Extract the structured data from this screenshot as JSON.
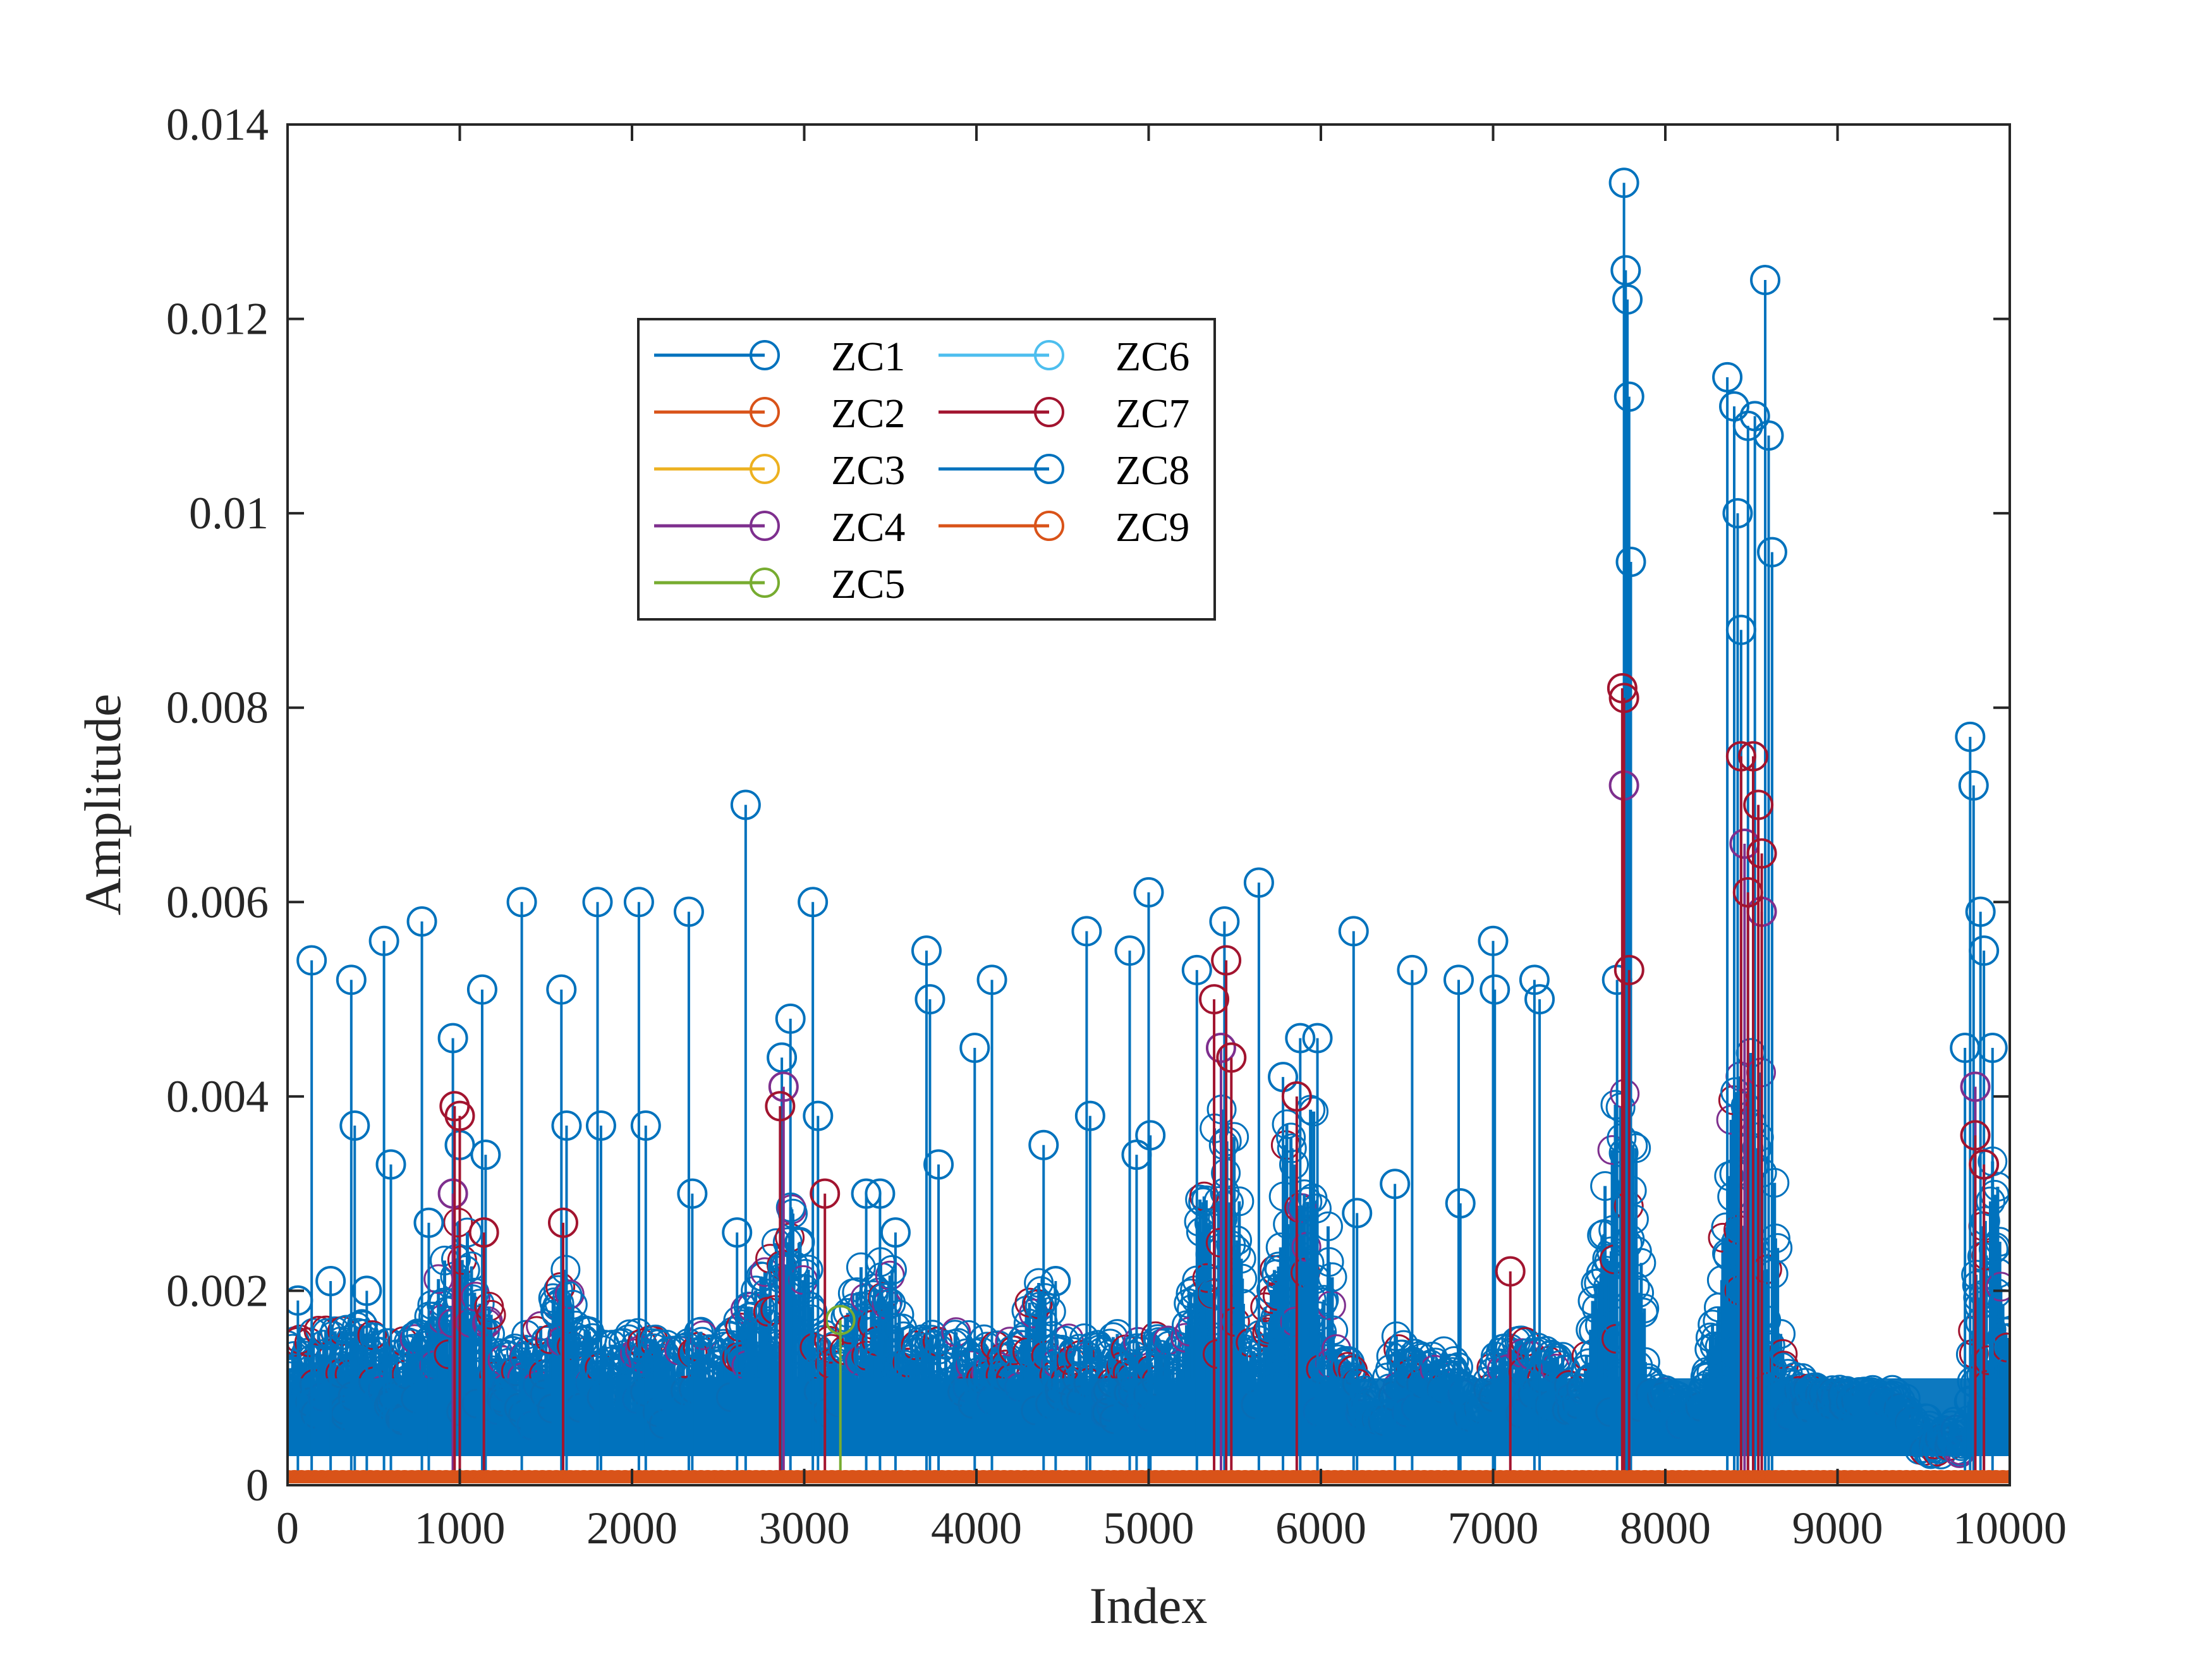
{
  "chart_data": {
    "type": "scatter",
    "plot_style": "stem",
    "title": "",
    "xlabel": "Index",
    "ylabel": "Amplitude",
    "xlim": [
      0,
      10000
    ],
    "ylim": [
      0,
      0.014
    ],
    "xticks": [
      0,
      1000,
      2000,
      3000,
      4000,
      5000,
      6000,
      7000,
      8000,
      9000,
      10000
    ],
    "xtick_labels": [
      "0",
      "1000",
      "2000",
      "3000",
      "4000",
      "5000",
      "6000",
      "7000",
      "8000",
      "9000",
      "10000"
    ],
    "yticks": [
      0,
      0.002,
      0.004,
      0.006,
      0.008,
      0.01,
      0.012,
      0.014
    ],
    "ytick_labels": [
      "0",
      "0.002",
      "0.004",
      "0.006",
      "0.008",
      "0.01",
      "0.012",
      "0.014"
    ],
    "grid": false,
    "legend_position": "upper-left-inside",
    "legend_columns": 2,
    "series": [
      {
        "name": "ZC1",
        "color": "#0072BD",
        "x": [
          60,
          140,
          250,
          370,
          390,
          460,
          560,
          600,
          780,
          820,
          960,
          1000,
          1130,
          1150,
          1360,
          1590,
          1620,
          1800,
          1820,
          2040,
          2080,
          2330,
          2350,
          2610,
          2660,
          2870,
          2920,
          3050,
          3080,
          3360,
          3440,
          3530,
          3710,
          3730,
          3780,
          3990,
          4090,
          4390,
          4460,
          4640,
          4660,
          4890,
          4930,
          5000,
          5010,
          5280,
          5440,
          5640,
          5780,
          5880,
          5980,
          6190,
          6210,
          6430,
          6530,
          6800,
          6810,
          7000,
          7010,
          7240,
          7270,
          7720,
          7760,
          7770,
          7780,
          7790,
          7800,
          8360,
          8400,
          8420,
          8440,
          8480,
          8520,
          8580,
          8600,
          8620,
          9740,
          9770,
          9790,
          9830,
          9850,
          9900
        ],
        "y": [
          0.0019,
          0.0054,
          0.0021,
          0.0052,
          0.0037,
          0.002,
          0.0056,
          0.0033,
          0.0058,
          0.0027,
          0.0046,
          0.0035,
          0.0051,
          0.0034,
          0.006,
          0.0051,
          0.0037,
          0.006,
          0.0037,
          0.006,
          0.0037,
          0.0059,
          0.003,
          0.0026,
          0.007,
          0.0044,
          0.0048,
          0.006,
          0.0038,
          0.003,
          0.003,
          0.0026,
          0.0055,
          0.005,
          0.0033,
          0.0045,
          0.0052,
          0.0035,
          0.0021,
          0.0057,
          0.0038,
          0.0055,
          0.0034,
          0.0061,
          0.0036,
          0.0053,
          0.0058,
          0.0062,
          0.0042,
          0.0046,
          0.0046,
          0.0057,
          0.0028,
          0.0031,
          0.0053,
          0.0052,
          0.0029,
          0.0056,
          0.0051,
          0.0052,
          0.005,
          0.0052,
          0.0134,
          0.0125,
          0.0122,
          0.0112,
          0.0095,
          0.0114,
          0.0111,
          0.01,
          0.0088,
          0.0109,
          0.011,
          0.0124,
          0.0108,
          0.0096,
          0.0045,
          0.0077,
          0.0072,
          0.0059,
          0.0055,
          0.0045
        ]
      },
      {
        "name": "ZC2",
        "color": "#D95319",
        "x": [],
        "y": []
      },
      {
        "name": "ZC3",
        "color": "#EDB120",
        "x": [],
        "y": []
      },
      {
        "name": "ZC4",
        "color": "#7E2F8E",
        "x": [
          960,
          2880,
          5420,
          7760,
          8460,
          8560,
          9800
        ],
        "y": [
          0.003,
          0.0041,
          0.0045,
          0.0072,
          0.0066,
          0.0059,
          0.0041
        ]
      },
      {
        "name": "ZC5",
        "color": "#77AC30",
        "x": [
          3210
        ],
        "y": [
          0.0017
        ]
      },
      {
        "name": "ZC6",
        "color": "#4DBEEE",
        "x": [],
        "y": []
      },
      {
        "name": "ZC7",
        "color": "#A2142F",
        "x": [
          970,
          1000,
          1140,
          1600,
          2860,
          3120,
          5380,
          5450,
          5480,
          5860,
          7100,
          7750,
          7760,
          7790,
          8440,
          8480,
          8510,
          8540,
          8560,
          9800,
          9850
        ],
        "y": [
          0.0039,
          0.0038,
          0.0026,
          0.0027,
          0.0039,
          0.003,
          0.005,
          0.0054,
          0.0044,
          0.004,
          0.0022,
          0.0082,
          0.0081,
          0.0053,
          0.0075,
          0.0061,
          0.0075,
          0.007,
          0.0065,
          0.0036,
          0.0033
        ]
      },
      {
        "name": "ZC8",
        "color": "#0072BD",
        "x": [],
        "y": []
      },
      {
        "name": "ZC9",
        "color": "#D95319",
        "x": [],
        "y": []
      }
    ],
    "dense_envelope": {
      "description_free_values": true,
      "x": [
        0,
        100,
        200,
        300,
        400,
        500,
        600,
        700,
        800,
        900,
        950,
        1000,
        1100,
        1200,
        1300,
        1400,
        1500,
        1600,
        1700,
        1800,
        1900,
        2000,
        2100,
        2200,
        2300,
        2400,
        2500,
        2600,
        2700,
        2800,
        2900,
        3000,
        3100,
        3200,
        3300,
        3400,
        3500,
        3600,
        3700,
        3800,
        3900,
        4000,
        4100,
        4200,
        4300,
        4400,
        4500,
        4600,
        4700,
        4800,
        4900,
        5000,
        5100,
        5200,
        5300,
        5400,
        5500,
        5600,
        5700,
        5800,
        5900,
        6000,
        6100,
        6200,
        6300,
        6350,
        6400,
        6500,
        6600,
        6700,
        6800,
        6900,
        7000,
        7100,
        7200,
        7300,
        7400,
        7500,
        7600,
        7700,
        7800,
        7900,
        8000,
        8100,
        8200,
        8300,
        8400,
        8500,
        8600,
        8700,
        8800,
        8900,
        9000,
        9100,
        9200,
        9300,
        9400,
        9450,
        9500,
        9600,
        9700,
        9750,
        9800,
        9900,
        9950,
        10000
      ],
      "y": [
        0.0015,
        0.0016,
        0.0017,
        0.0016,
        0.0017,
        0.0016,
        0.0015,
        0.0016,
        0.0018,
        0.0023,
        0.0027,
        0.0028,
        0.0024,
        0.0017,
        0.0015,
        0.0016,
        0.0017,
        0.0024,
        0.0016,
        0.0016,
        0.0015,
        0.0016,
        0.0015,
        0.0016,
        0.0015,
        0.0016,
        0.0015,
        0.0017,
        0.0019,
        0.0027,
        0.0032,
        0.0025,
        0.0016,
        0.0015,
        0.0022,
        0.0024,
        0.0023,
        0.0015,
        0.0016,
        0.0015,
        0.0016,
        0.0015,
        0.0016,
        0.0015,
        0.0019,
        0.0022,
        0.0015,
        0.0016,
        0.0015,
        0.0016,
        0.0015,
        0.0016,
        0.0015,
        0.0015,
        0.003,
        0.004,
        0.0036,
        0.0014,
        0.002,
        0.0038,
        0.0042,
        0.0036,
        0.0015,
        0.0012,
        0.0008,
        0.0004,
        0.0016,
        0.0015,
        0.0013,
        0.0014,
        0.0013,
        0.0007,
        0.0013,
        0.0015,
        0.0015,
        0.0014,
        0.0015,
        0.0009,
        0.0022,
        0.004,
        0.0045,
        0.0012,
        0.001,
        0.0009,
        0.0008,
        0.002,
        0.0042,
        0.0046,
        0.0042,
        0.0012,
        0.0011,
        0.001,
        0.001,
        0.001,
        0.001,
        0.001,
        0.0009,
        0.0004,
        0.0003,
        0.0003,
        0.0003,
        0.0004,
        0.0028,
        0.0034,
        0.003,
        0.0014
      ]
    },
    "legend_entries": [
      "ZC1",
      "ZC2",
      "ZC3",
      "ZC4",
      "ZC5",
      "ZC6",
      "ZC7",
      "ZC8",
      "ZC9"
    ]
  }
}
